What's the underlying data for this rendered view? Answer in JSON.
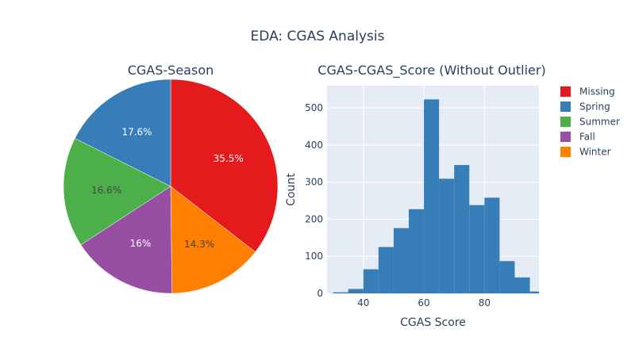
{
  "figure": {
    "title": "EDA: CGAS Analysis"
  },
  "chart_data": [
    {
      "type": "pie",
      "title": "CGAS-Season",
      "labels": [
        "Missing",
        "Winter",
        "Fall",
        "Summer",
        "Spring"
      ],
      "values": [
        35.5,
        14.3,
        16,
        16.6,
        17.6
      ],
      "text": [
        "35.5%",
        "14.3%",
        "16%",
        "16.6%",
        "17.6%"
      ],
      "colors": [
        "#e41a1c",
        "#ff7f00",
        "#984ea3",
        "#4daf4a",
        "#377eb8"
      ],
      "text_colors": [
        "#ffffff",
        "#444444",
        "#ffffff",
        "#444444",
        "#ffffff"
      ],
      "direction": "clockwise",
      "start": "12 o'clock"
    },
    {
      "type": "bar",
      "subtype": "histogram",
      "title": "CGAS-CGAS_Score (Without Outlier)",
      "xlabel": "CGAS Score",
      "ylabel": "Count",
      "bin_edges": [
        25,
        30,
        35,
        40,
        45,
        50,
        55,
        60,
        65,
        70,
        75,
        80,
        85,
        90,
        95,
        100
      ],
      "values": [
        0,
        3,
        12,
        65,
        125,
        176,
        227,
        523,
        309,
        346,
        238,
        258,
        87,
        43,
        5
      ],
      "xlim": [
        28,
        98
      ],
      "ylim": [
        0,
        560
      ],
      "xticks": [
        "40",
        "60",
        "80"
      ],
      "xtick_values": [
        40,
        60,
        80
      ],
      "yticks": [
        "0",
        "100",
        "200",
        "300",
        "400",
        "500"
      ],
      "ytick_values": [
        0,
        100,
        200,
        300,
        400,
        500
      ],
      "bar_color": "#377eb8",
      "plot_bg": "#e5ecf6",
      "grid": true
    }
  ],
  "legend": {
    "placement": "top-right",
    "items": [
      {
        "label": "Missing",
        "color": "#e41a1c"
      },
      {
        "label": "Spring",
        "color": "#377eb8"
      },
      {
        "label": "Summer",
        "color": "#4daf4a"
      },
      {
        "label": "Fall",
        "color": "#984ea3"
      },
      {
        "label": "Winter",
        "color": "#ff7f00"
      }
    ]
  }
}
